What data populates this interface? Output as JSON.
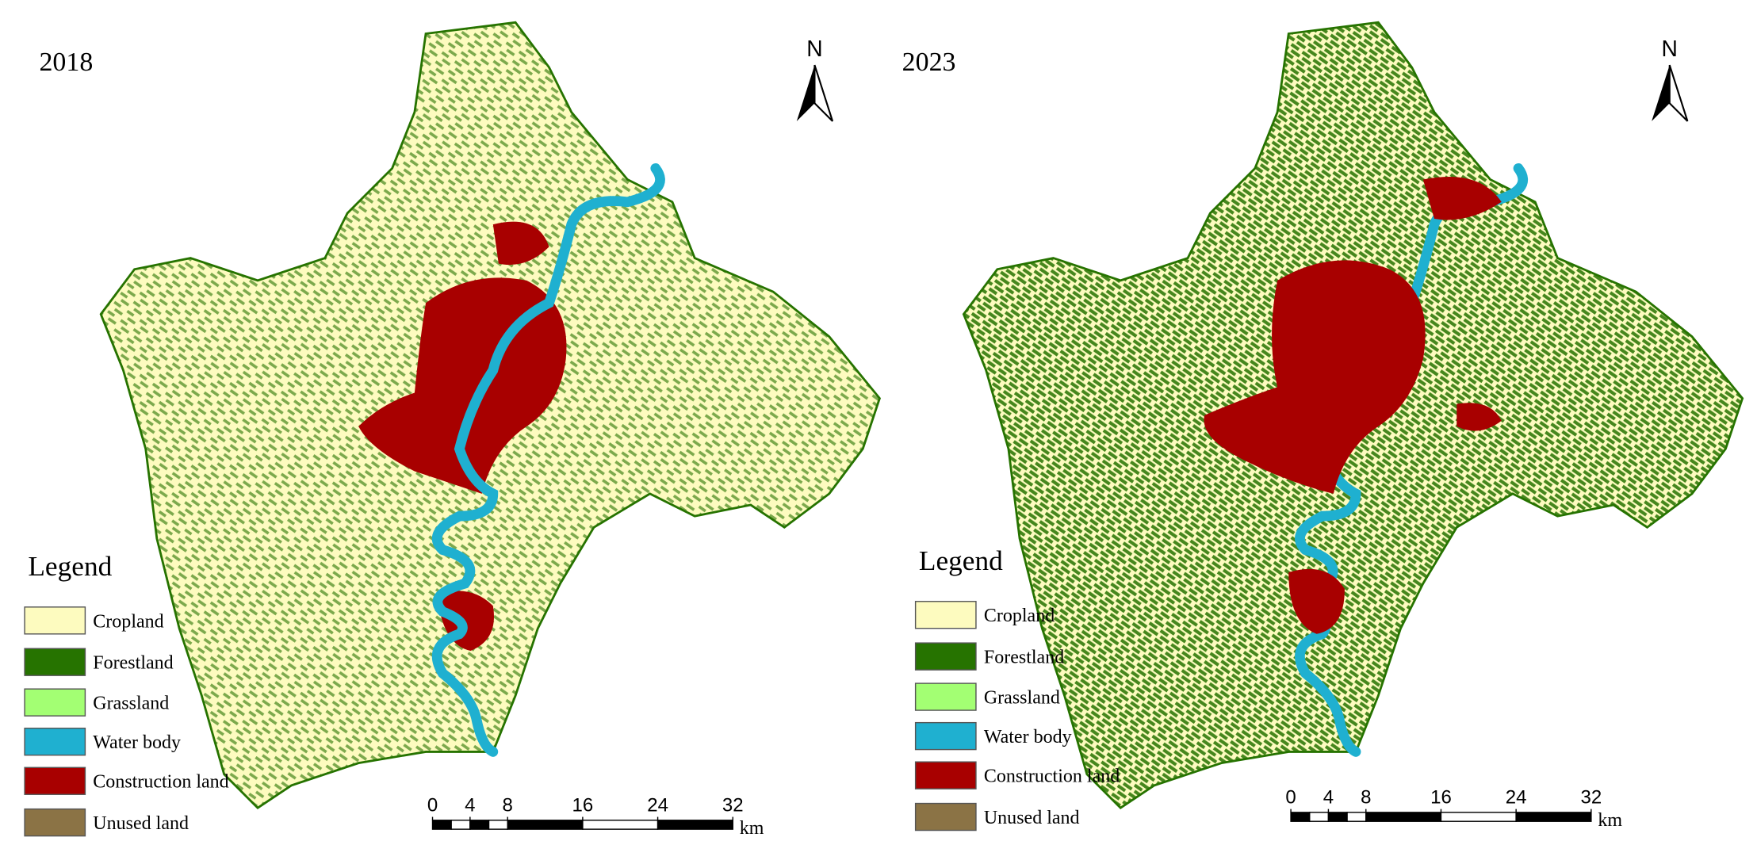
{
  "panels": [
    {
      "year": "2018",
      "north": "N",
      "legend": {
        "title": "Legend",
        "items": [
          {
            "label": "Cropland",
            "color": "#fdfbbf"
          },
          {
            "label": "Forestland",
            "color": "#267300"
          },
          {
            "label": "Grassland",
            "color": "#a3ff73"
          },
          {
            "label": "Water body",
            "color": "#1fb0d0"
          },
          {
            "label": "Construction land",
            "color": "#a80000"
          },
          {
            "label": "Unused land",
            "color": "#8b7345"
          }
        ]
      },
      "scale_bar": {
        "ticks": [
          0,
          4,
          8,
          16,
          24,
          32
        ],
        "unit": "km"
      }
    },
    {
      "year": "2023",
      "north": "N",
      "legend": {
        "title": "Legend",
        "items": [
          {
            "label": "Cropland",
            "color": "#fdfbbf"
          },
          {
            "label": "Forestland",
            "color": "#267300"
          },
          {
            "label": "Grassland",
            "color": "#a3ff73"
          },
          {
            "label": "Water body",
            "color": "#1fb0d0"
          },
          {
            "label": "Construction land",
            "color": "#a80000"
          },
          {
            "label": "Unused land",
            "color": "#8b7345"
          }
        ]
      },
      "scale_bar": {
        "ticks": [
          0,
          4,
          8,
          16,
          24,
          32
        ],
        "unit": "km"
      }
    }
  ]
}
